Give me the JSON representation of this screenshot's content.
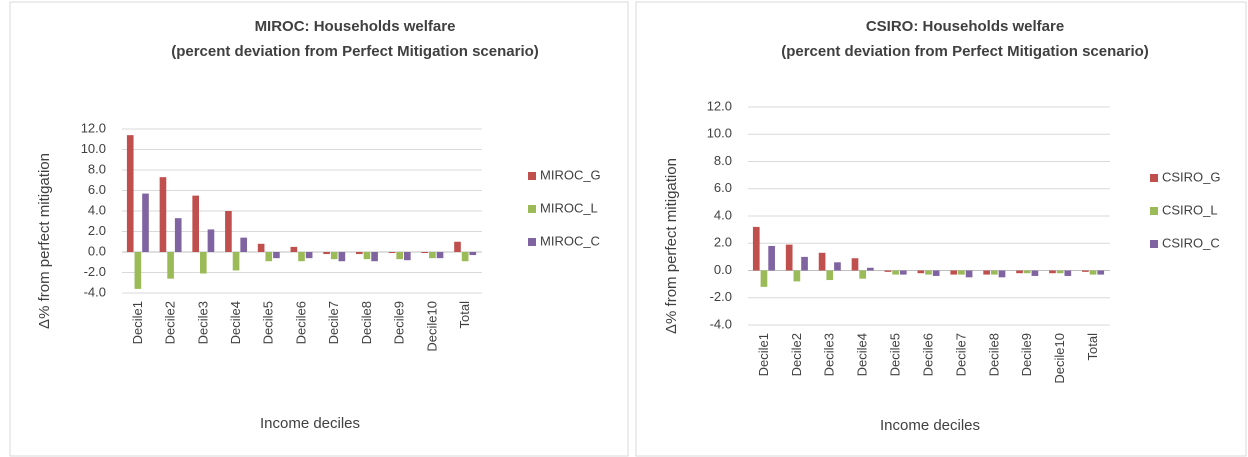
{
  "chart_data": [
    {
      "type": "bar",
      "title": "MIROC: Households welfare",
      "subtitle": "(percent deviation from Perfect Mitigation scenario)",
      "x_label": "Income deciles",
      "y_label": "Δ% from perfect mitigation",
      "categories": [
        "Decile1",
        "Decile2",
        "Decile3",
        "Decile4",
        "Decile5",
        "Decile6",
        "Decile7",
        "Decile8",
        "Decile9",
        "Decile10",
        "Total"
      ],
      "series": [
        {
          "name": "MIROC_G",
          "color": "#c0504d",
          "values": [
            11.4,
            7.3,
            5.5,
            4.0,
            0.8,
            0.5,
            -0.2,
            -0.2,
            -0.1,
            -0.1,
            1.0
          ]
        },
        {
          "name": "MIROC_L",
          "color": "#9bbb59",
          "values": [
            -3.6,
            -2.6,
            -2.1,
            -1.8,
            -0.9,
            -0.9,
            -0.7,
            -0.7,
            -0.7,
            -0.6,
            -0.9
          ]
        },
        {
          "name": "MIROC_C",
          "color": "#8064a2",
          "values": [
            5.7,
            3.3,
            2.2,
            1.4,
            -0.6,
            -0.6,
            -0.9,
            -0.9,
            -0.8,
            -0.6,
            -0.3
          ]
        }
      ],
      "ylim": [
        -4,
        12
      ],
      "yticks": [
        {
          "value": -4,
          "label": "-4.0"
        },
        {
          "value": -2,
          "label": "-2.0"
        },
        {
          "value": 0,
          "label": "0.0"
        },
        {
          "value": 2,
          "label": "2.0"
        },
        {
          "value": 4,
          "label": "4.0"
        },
        {
          "value": 6,
          "label": "6.0"
        },
        {
          "value": 8,
          "label": "8.0"
        },
        {
          "value": 10,
          "label": "10.0"
        },
        {
          "value": 12,
          "label": "12.0"
        }
      ],
      "grid": true,
      "legend": "right"
    },
    {
      "type": "bar",
      "title": "CSIRO: Households welfare",
      "subtitle": "(percent deviation from Perfect Mitigation scenario)",
      "x_label": "Income deciles",
      "y_label": "Δ% from perfect mitigation",
      "categories": [
        "Decile1",
        "Decile2",
        "Decile3",
        "Decile4",
        "Decile5",
        "Decile6",
        "Decile7",
        "Decile8",
        "Decile9",
        "Decile10",
        "Total"
      ],
      "series": [
        {
          "name": "CSIRO_G",
          "color": "#c0504d",
          "values": [
            3.2,
            1.9,
            1.3,
            0.9,
            -0.1,
            -0.2,
            -0.3,
            -0.3,
            -0.2,
            -0.2,
            -0.1
          ]
        },
        {
          "name": "CSIRO_L",
          "color": "#9bbb59",
          "values": [
            -1.2,
            -0.8,
            -0.7,
            -0.6,
            -0.3,
            -0.3,
            -0.3,
            -0.3,
            -0.2,
            -0.2,
            -0.3
          ]
        },
        {
          "name": "CSIRO_C",
          "color": "#8064a2",
          "values": [
            1.8,
            1.0,
            0.6,
            0.2,
            -0.3,
            -0.4,
            -0.5,
            -0.5,
            -0.4,
            -0.4,
            -0.3
          ]
        }
      ],
      "ylim": [
        -4,
        12
      ],
      "yticks": [
        {
          "value": -4,
          "label": "-4.0"
        },
        {
          "value": -2,
          "label": "-2.0"
        },
        {
          "value": 0,
          "label": "0.0"
        },
        {
          "value": 2,
          "label": "2.0"
        },
        {
          "value": 4,
          "label": "4.0"
        },
        {
          "value": 6,
          "label": "6.0"
        },
        {
          "value": 8,
          "label": "8.0"
        },
        {
          "value": 10,
          "label": "10.0"
        },
        {
          "value": 12,
          "label": "12.0"
        }
      ],
      "grid": true,
      "legend": "right"
    }
  ]
}
